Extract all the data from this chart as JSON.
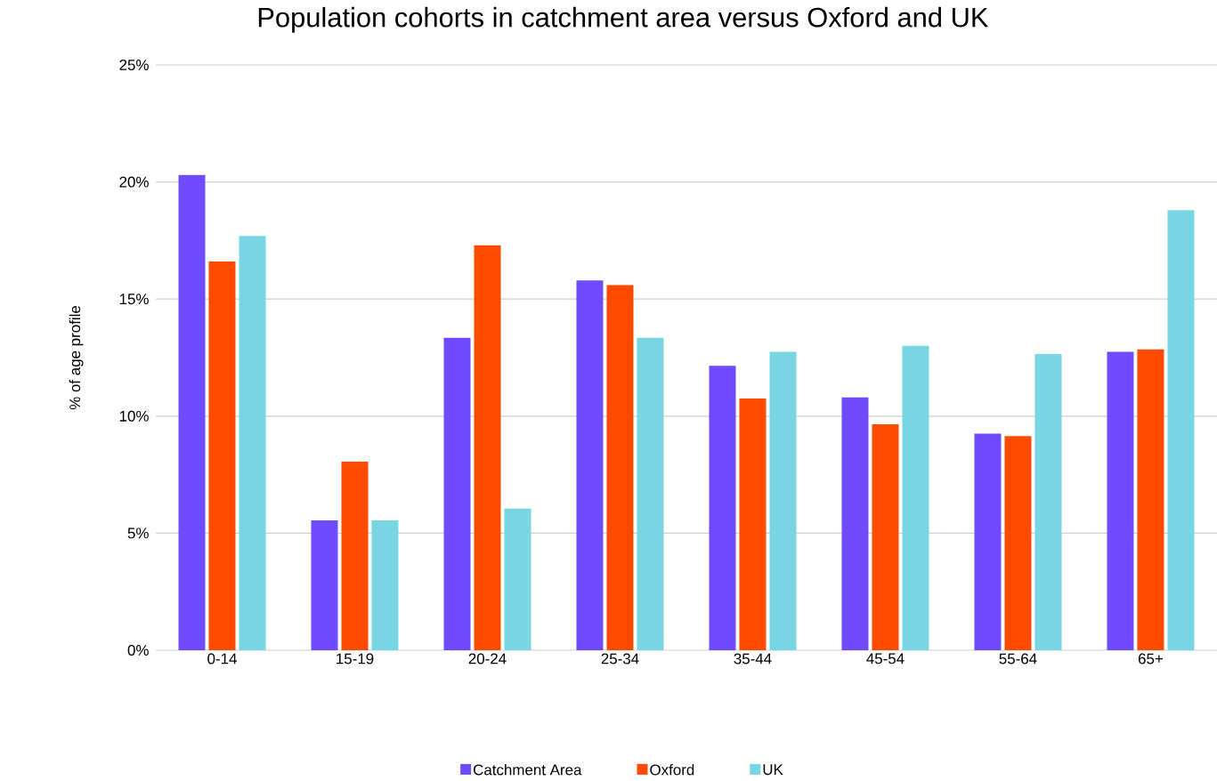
{
  "chart_data": {
    "type": "bar",
    "title": "Population cohorts in catchment area versus Oxford and UK",
    "ylabel": "% of age profile",
    "categories": [
      "0-14",
      "15-19",
      "20-24",
      "25-34",
      "35-44",
      "45-54",
      "55-64",
      "65+"
    ],
    "series": [
      {
        "name": "Catchment Area",
        "color": "#6e4bff",
        "values": [
          20.3,
          5.55,
          13.35,
          15.8,
          12.15,
          10.8,
          9.25,
          12.75
        ]
      },
      {
        "name": "Oxford",
        "color": "#ff4b00",
        "values": [
          16.6,
          8.05,
          17.3,
          15.6,
          10.75,
          9.65,
          9.15,
          12.85
        ]
      },
      {
        "name": "UK",
        "color": "#78d5e2",
        "values": [
          17.7,
          5.55,
          6.05,
          13.35,
          12.75,
          13.0,
          12.65,
          18.8
        ]
      }
    ],
    "ylim": [
      0,
      25
    ],
    "yticks": [
      {
        "value": 0,
        "label": "0%"
      },
      {
        "value": 5,
        "label": "5%"
      },
      {
        "value": 10,
        "label": "10%"
      },
      {
        "value": 15,
        "label": "15%"
      },
      {
        "value": 20,
        "label": "20%"
      },
      {
        "value": 25,
        "label": "25%"
      }
    ],
    "grid": "y",
    "legend": "bottom"
  }
}
